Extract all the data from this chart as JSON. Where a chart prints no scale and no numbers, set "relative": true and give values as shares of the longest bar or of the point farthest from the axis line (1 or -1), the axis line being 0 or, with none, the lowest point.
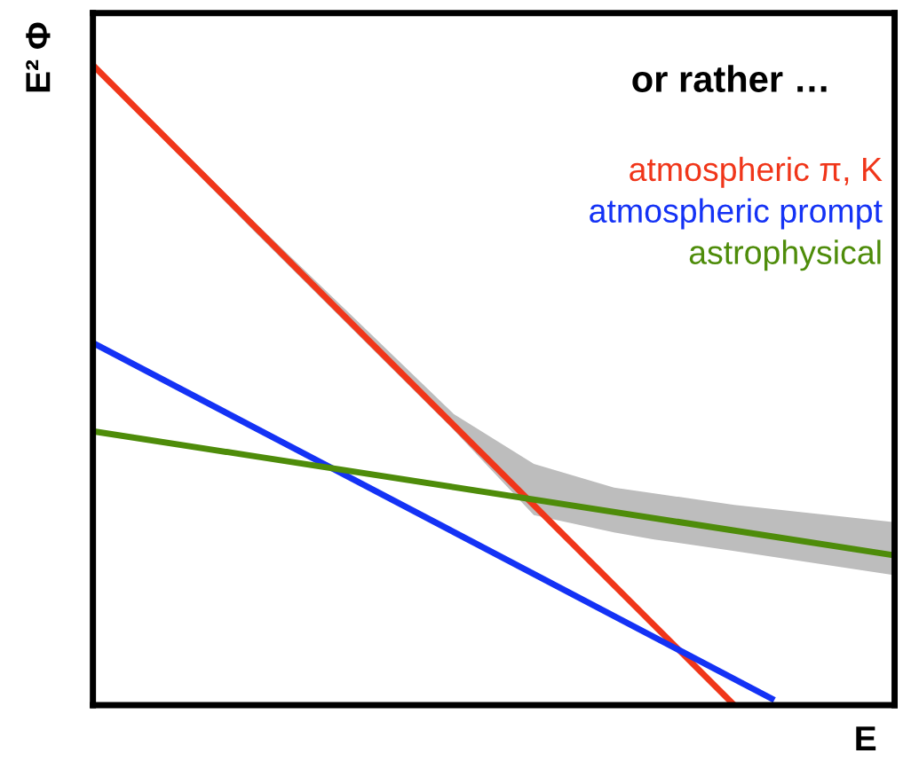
{
  "chart_data": {
    "type": "line",
    "relative": true,
    "title": "or rather …",
    "xlabel": "E",
    "ylabel": "E² Φ",
    "categories": [
      null,
      null,
      null,
      null,
      null,
      null,
      null,
      null,
      null,
      null,
      null,
      null,
      null,
      null,
      null,
      null,
      null,
      null,
      null,
      null,
      null
    ],
    "series": [
      {
        "color": "#bdbdbd",
        "values": [
          null,
          null,
          null,
          null,
          null,
          null,
          null,
          null,
          null,
          null,
          null,
          null,
          null,
          null,
          null,
          null,
          null,
          null,
          null,
          null,
          null
        ],
        "lower": [
          0.995,
          null,
          null,
          null,
          0.742,
          null,
          null,
          null,
          null,
          0.43,
          null,
          0.297,
          null,
          0.27,
          0.259,
          null,
          0.241,
          null,
          null,
          null,
          0.203
        ],
        "upper": [
          1.005,
          null,
          null,
          null,
          0.757,
          null,
          null,
          null,
          null,
          0.455,
          null,
          0.377,
          null,
          0.34,
          0.331,
          null,
          0.313,
          null,
          null,
          null,
          0.286
        ]
      },
      {
        "name": "atmospheric π, K",
        "color": "#f0361a",
        "values": [
          1.0,
          null,
          null,
          null,
          null,
          null,
          null,
          null,
          null,
          null,
          null,
          null,
          null,
          null,
          null,
          null,
          0,
          null,
          null,
          null,
          null
        ]
      },
      {
        "name": "atmospheric prompt",
        "color": "#1432f5",
        "values": [
          0.566,
          null,
          null,
          null,
          null,
          null,
          null,
          null,
          null,
          null,
          null,
          null,
          null,
          null,
          null,
          null,
          null,
          0.008,
          null,
          null,
          null
        ]
      },
      {
        "name": "astrophysical",
        "color": "#4e8c0a",
        "values": [
          0.428,
          null,
          null,
          null,
          null,
          null,
          null,
          null,
          null,
          null,
          null,
          null,
          null,
          null,
          null,
          null,
          null,
          null,
          null,
          null,
          0.234
        ]
      }
    ]
  }
}
